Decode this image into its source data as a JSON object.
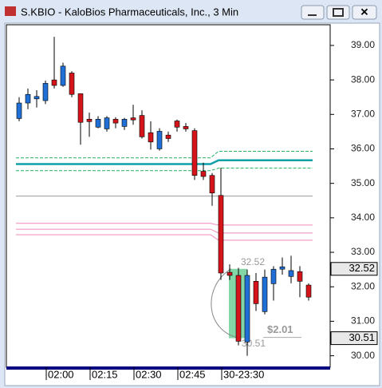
{
  "window_title": "S.KBIO - KaloBios Pharmaceuticals, Inc., 3 Min",
  "chart_data": {
    "type": "candlestick",
    "categories": [
      null,
      null,
      null,
      "02:00",
      null,
      null,
      null,
      null,
      "02:15",
      null,
      null,
      null,
      null,
      "02:30",
      null,
      null,
      null,
      null,
      "02:45",
      null,
      null,
      null,
      null,
      "30-23:30",
      null,
      null,
      null,
      null,
      null,
      null,
      null,
      null,
      null,
      null
    ],
    "open": [
      36.88,
      37.33,
      37.45,
      37.4,
      38.0,
      37.84,
      38.2,
      37.6,
      36.86,
      36.63,
      36.58,
      36.86,
      36.65,
      36.9,
      36.97,
      36.47,
      36.0,
      36.4,
      36.81,
      36.65,
      36.53,
      35.35,
      35.23,
      34.65,
      32.42,
      32.33,
      30.4,
      32.16,
      31.28,
      32.09,
      32.51,
      32.3,
      32.44,
      32.05
    ],
    "high": [
      37.5,
      37.75,
      37.7,
      37.98,
      39.25,
      38.5,
      38.25,
      37.6,
      37.05,
      36.95,
      36.95,
      36.92,
      36.9,
      37.28,
      37.12,
      36.8,
      36.6,
      36.5,
      36.85,
      36.75,
      36.6,
      35.6,
      35.3,
      35.45,
      32.65,
      32.55,
      32.5,
      32.4,
      32.5,
      32.6,
      32.85,
      32.9,
      32.6,
      32.1
    ],
    "low": [
      36.8,
      37.15,
      37.2,
      37.3,
      37.75,
      37.8,
      37.5,
      36.12,
      36.35,
      36.6,
      36.5,
      36.6,
      36.55,
      36.7,
      36.3,
      35.98,
      35.95,
      36.2,
      36.5,
      36.5,
      35.1,
      35.1,
      34.35,
      32.2,
      32.2,
      30.3,
      30.0,
      31.3,
      31.2,
      31.6,
      32.35,
      32.1,
      31.7,
      31.6
    ],
    "close": [
      37.33,
      37.58,
      37.52,
      37.9,
      37.84,
      38.4,
      37.58,
      36.77,
      36.79,
      36.86,
      36.9,
      36.75,
      36.86,
      36.84,
      36.35,
      36.2,
      36.51,
      36.3,
      36.63,
      36.58,
      35.23,
      35.2,
      34.72,
      32.4,
      32.33,
      30.42,
      32.33,
      31.51,
      32.28,
      32.51,
      32.58,
      32.47,
      32.16,
      31.7
    ],
    "up_color": "#1f6fd6",
    "down_color": "#d4141a",
    "ylim": [
      29.69,
      39.6
    ],
    "yticks": [
      {
        "value": 39,
        "label": "39.00"
      },
      {
        "value": 38,
        "label": "38.00"
      },
      {
        "value": 37,
        "label": "37.00"
      },
      {
        "value": 36,
        "label": "36.00"
      },
      {
        "value": 35,
        "label": "35.00"
      },
      {
        "value": 34,
        "label": "34.00"
      },
      {
        "value": 33,
        "label": "33.00"
      },
      {
        "value": 32,
        "label": "32.00"
      },
      {
        "value": 31,
        "label": "31.00"
      },
      {
        "value": 30,
        "label": "30.00"
      }
    ],
    "levels": [
      {
        "color": "#22b060",
        "values": [
          35.74,
          35.93
        ]
      },
      {
        "color": "#10a0a8",
        "values": [
          35.56,
          35.67
        ]
      },
      {
        "color": "#22b060",
        "values": [
          35.37,
          35.44
        ]
      },
      {
        "color": "#999999",
        "values": [
          34.63,
          34.63
        ]
      },
      {
        "color": "#f088b8",
        "values": [
          33.84,
          33.79
        ]
      },
      {
        "color": "#f088b8",
        "values": [
          33.67,
          33.56
        ]
      },
      {
        "color": "#f088b8",
        "values": [
          33.51,
          33.35
        ]
      }
    ],
    "price_markers": [
      {
        "value": 32.52,
        "label": "32.52"
      },
      {
        "value": 30.51,
        "label": "30.51"
      }
    ],
    "measure": {
      "high": 32.52,
      "low": 30.51,
      "high_label": "32.52",
      "low_label": "30.51",
      "change": "$2.01"
    }
  }
}
